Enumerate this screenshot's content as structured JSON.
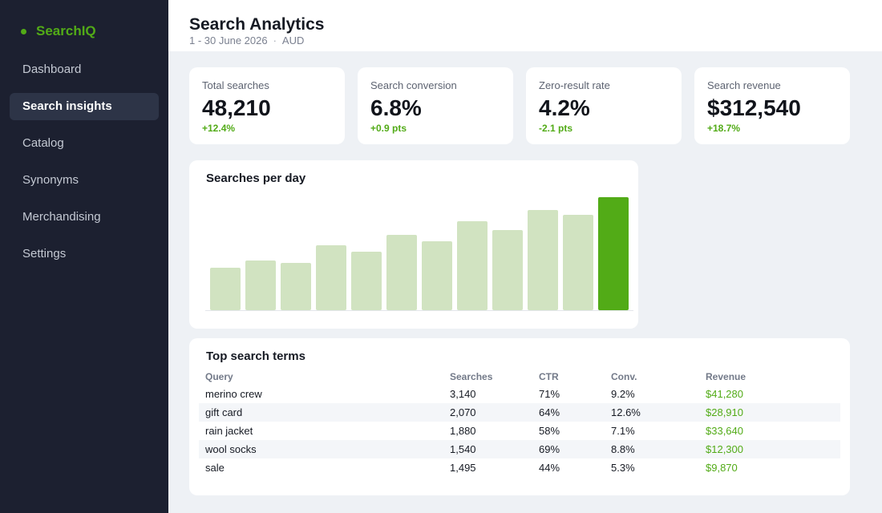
{
  "brand": {
    "name": "SearchIQ",
    "dot_color": "#52ab17"
  },
  "sidebar": {
    "items": [
      {
        "label": "Dashboard",
        "active": false
      },
      {
        "label": "Search insights",
        "active": true
      },
      {
        "label": "Catalog",
        "active": false
      },
      {
        "label": "Synonyms",
        "active": false
      },
      {
        "label": "Merchandising",
        "active": false
      },
      {
        "label": "Settings",
        "active": false
      }
    ]
  },
  "header": {
    "title": "Search Analytics",
    "date_range": "1 - 30 June 2026",
    "separator": "·",
    "currency": "AUD"
  },
  "kpis": [
    {
      "label": "Total searches",
      "value": "48,210",
      "delta": "+12.4%"
    },
    {
      "label": "Search conversion",
      "value": "6.8%",
      "delta": "+0.9 pts"
    },
    {
      "label": "Zero-result rate",
      "value": "4.2%",
      "delta": "-2.1 pts"
    },
    {
      "label": "Search revenue",
      "value": "$312,540",
      "delta": "+18.7%"
    }
  ],
  "colors": {
    "accent": "#52ab17",
    "bar_muted": "#d1e3c1",
    "bar_highlight": "#52ab17"
  },
  "chart_data": {
    "type": "bar",
    "title": "Searches per day",
    "xlabel": "",
    "ylabel": "",
    "values": [
      53,
      62,
      59,
      81,
      73,
      94,
      86,
      111,
      100,
      125,
      119,
      141
    ],
    "highlight_index": 11,
    "grid": false,
    "axis_labels_shown": false
  },
  "top_terms": {
    "title": "Top search terms",
    "columns": [
      "Query",
      "Searches",
      "CTR",
      "Conv.",
      "Revenue"
    ],
    "rows": [
      [
        "merino crew",
        "3,140",
        "71%",
        "9.2%",
        "$41,280"
      ],
      [
        "gift card",
        "2,070",
        "64%",
        "12.6%",
        "$28,910"
      ],
      [
        "rain jacket",
        "1,880",
        "58%",
        "7.1%",
        "$33,640"
      ],
      [
        "wool socks",
        "1,540",
        "69%",
        "8.8%",
        "$12,300"
      ],
      [
        "sale",
        "1,495",
        "44%",
        "5.3%",
        "$9,870"
      ]
    ]
  }
}
